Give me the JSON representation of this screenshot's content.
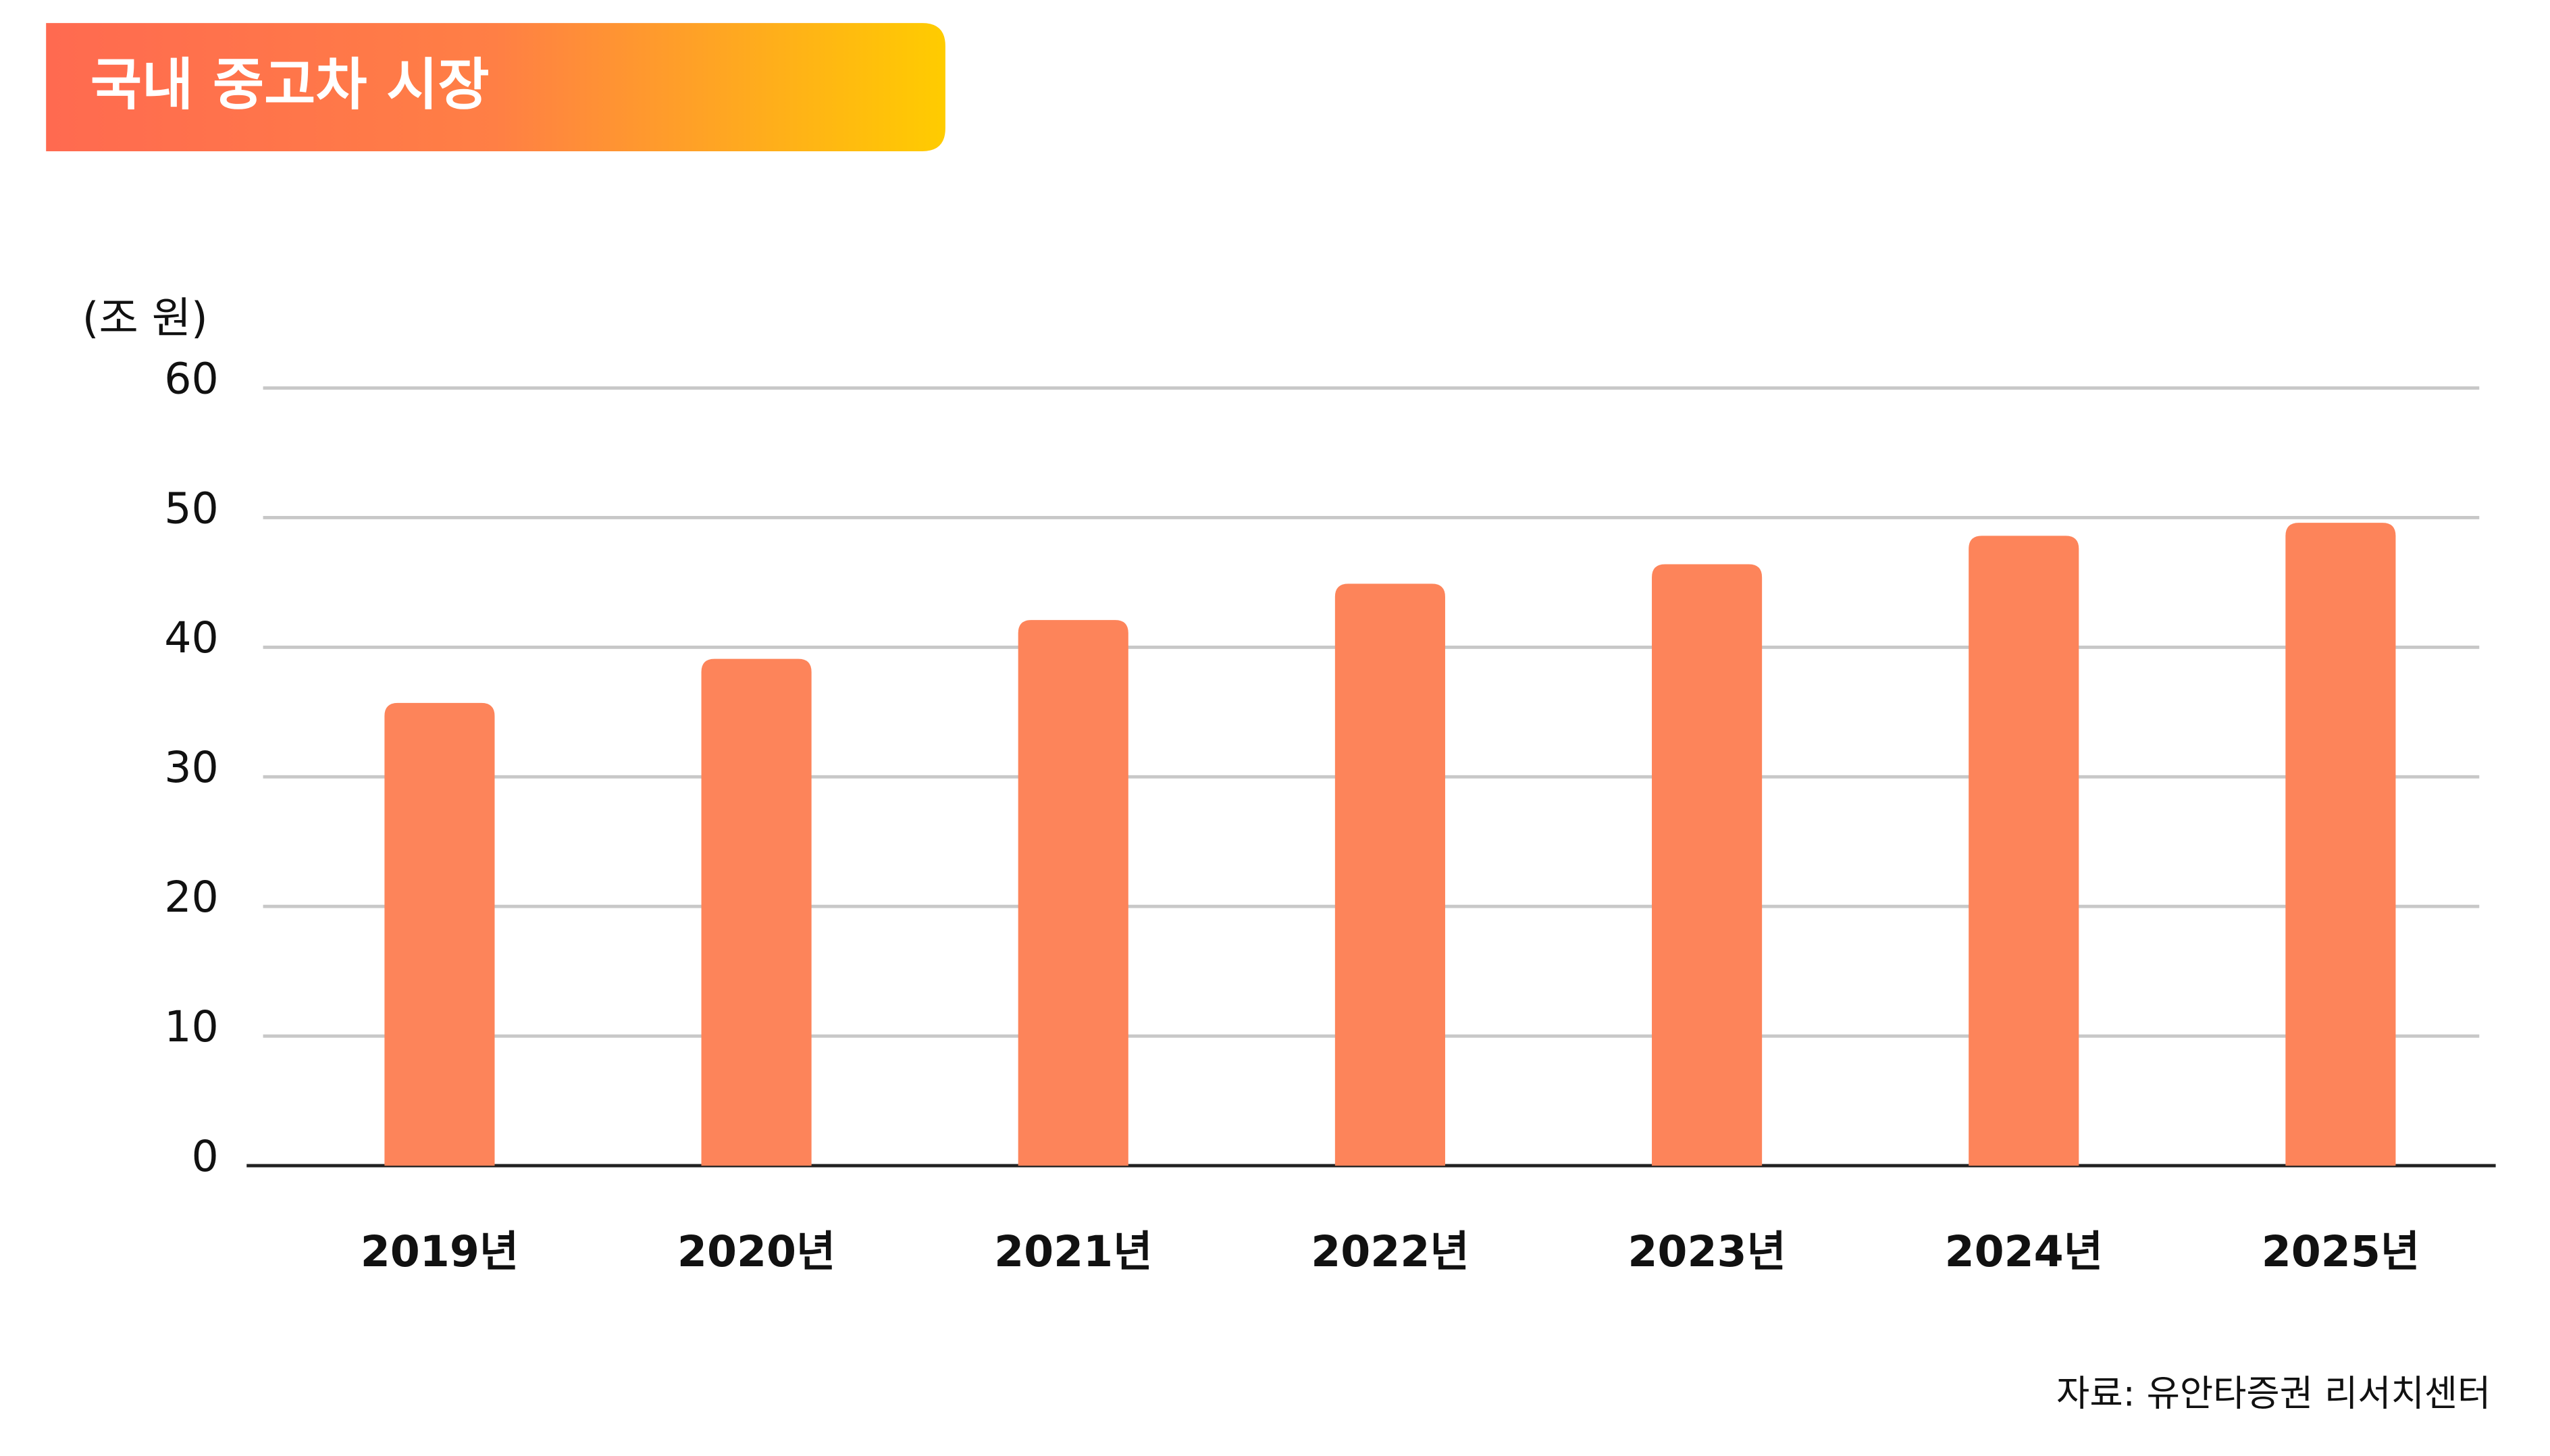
{
  "chart_data": {
    "type": "bar",
    "title": "국내 중고차 시장",
    "y_unit": "(조 원)",
    "source": "자료: 유안타증권 리서치센터",
    "categories": [
      "2019년",
      "2020년",
      "2021년",
      "2022년",
      "2023년",
      "2024년",
      "2025년"
    ],
    "values": [
      35.7,
      39.1,
      42.1,
      44.9,
      46.4,
      48.6,
      49.6
    ],
    "color": "#fd845a",
    "ylim": [
      0,
      60
    ],
    "yticks": [
      0,
      10,
      20,
      30,
      40,
      50,
      60
    ],
    "grid": true
  }
}
